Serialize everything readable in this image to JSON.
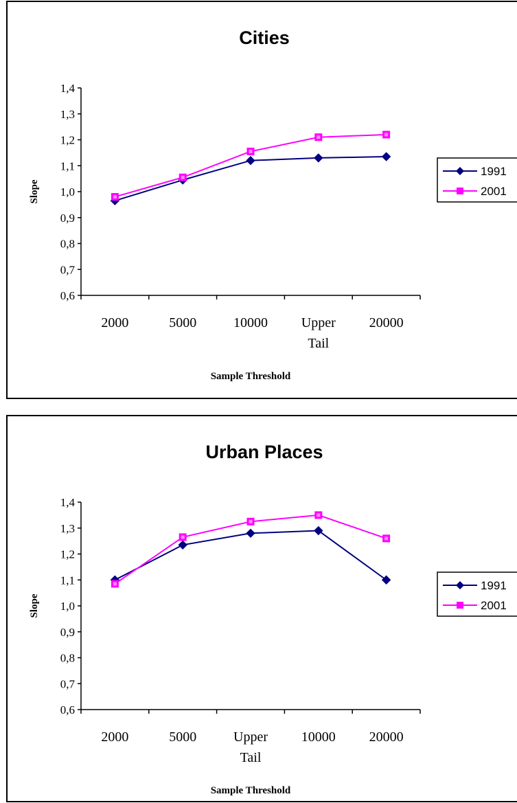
{
  "chart_data": [
    {
      "type": "line",
      "title": "Cities",
      "xlabel": "Sample Threshold",
      "ylabel": "Slope",
      "categories": [
        "2000",
        "5000",
        "10000",
        "Upper Tail",
        "20000"
      ],
      "ylim": [
        0.6,
        1.4
      ],
      "yticks": [
        "0,6",
        "0,7",
        "0,8",
        "0,9",
        "1,0",
        "1,1",
        "1,2",
        "1,3",
        "1,4"
      ],
      "grid": false,
      "legend": "right",
      "series": [
        {
          "name": "1991",
          "color": "#000080",
          "marker": "diamond",
          "values": [
            0.965,
            1.045,
            1.12,
            1.13,
            1.135
          ]
        },
        {
          "name": "2001",
          "color": "#FF00FF",
          "marker": "square",
          "values": [
            0.98,
            1.055,
            1.155,
            1.21,
            1.22
          ]
        }
      ]
    },
    {
      "type": "line",
      "title": "Urban Places",
      "xlabel": "Sample Threshold",
      "ylabel": "Slope",
      "categories": [
        "2000",
        "5000",
        "Upper Tail",
        "10000",
        "20000"
      ],
      "ylim": [
        0.6,
        1.4
      ],
      "yticks": [
        "0,6",
        "0,7",
        "0,8",
        "0,9",
        "1,0",
        "1,1",
        "1,2",
        "1,3",
        "1,4"
      ],
      "grid": false,
      "legend": "right",
      "series": [
        {
          "name": "1991",
          "color": "#000080",
          "marker": "diamond",
          "values": [
            1.1,
            1.235,
            1.28,
            1.29,
            1.1
          ]
        },
        {
          "name": "2001",
          "color": "#FF00FF",
          "marker": "square",
          "values": [
            1.085,
            1.265,
            1.325,
            1.35,
            1.26
          ]
        }
      ]
    }
  ]
}
